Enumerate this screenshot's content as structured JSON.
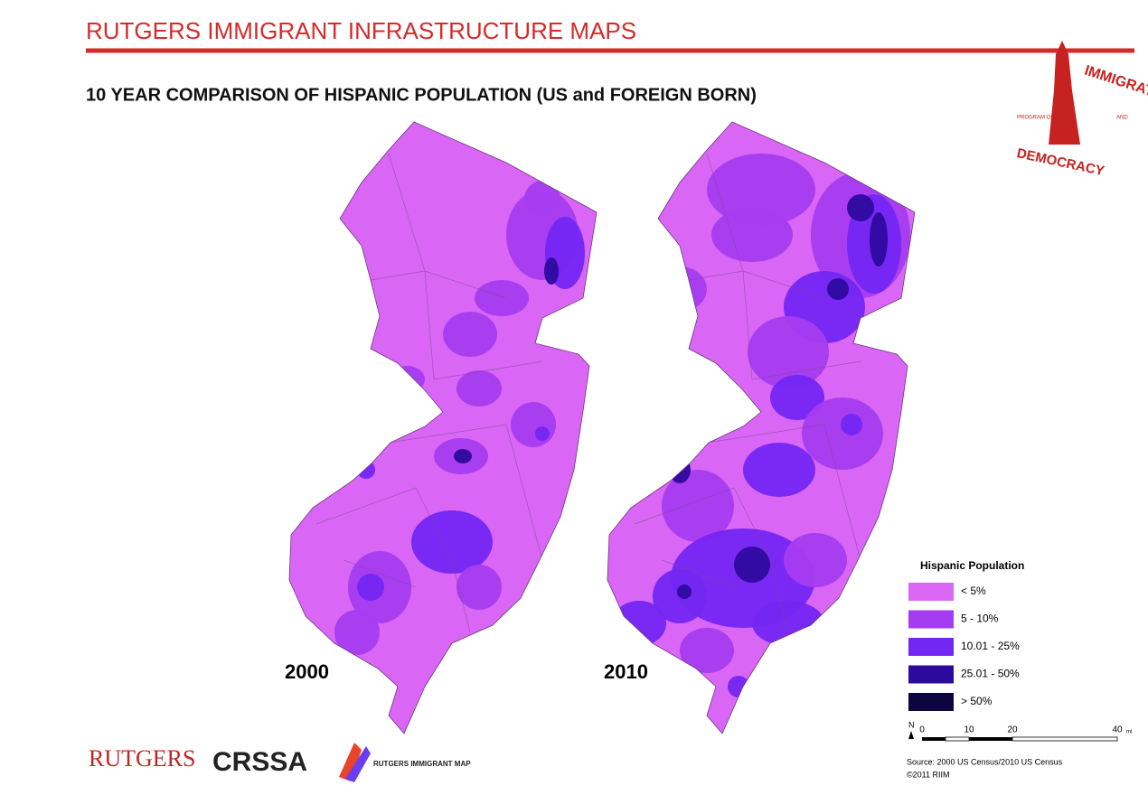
{
  "header": {
    "title": "RUTGERS IMMIGRANT INFRASTRUCTURE MAPS",
    "subtitle": "10 YEAR COMPARISON OF HISPANIC POPULATION (US and FOREIGN BORN)"
  },
  "logo": {
    "top": "IMMIGRATION",
    "left": "PROGRAM ON",
    "right": "AND",
    "bottom": "DEMOCRACY"
  },
  "maps": [
    {
      "label": "2000"
    },
    {
      "label": "2010"
    }
  ],
  "legend": {
    "title": "Hispanic Population",
    "items": [
      {
        "label": "< 5%",
        "color": "#d966f5"
      },
      {
        "label": "5 - 10%",
        "color": "#a63cf0"
      },
      {
        "label": "10.01 - 25%",
        "color": "#7426f2"
      },
      {
        "label": "25.01 - 50%",
        "color": "#2d0a9e"
      },
      {
        "label": "> 50%",
        "color": "#0c0540"
      }
    ]
  },
  "scale_bar": {
    "north": "N",
    "labels": [
      "0",
      "10",
      "20",
      "40"
    ],
    "unit": "mi"
  },
  "source": "Source: 2000 US Census/2010 US Census",
  "copyright": "©2011 RIIM",
  "footer_logos": [
    "RUTGERS",
    "CRSSA",
    "RUTGERS IMMIGRANT MAP"
  ]
}
